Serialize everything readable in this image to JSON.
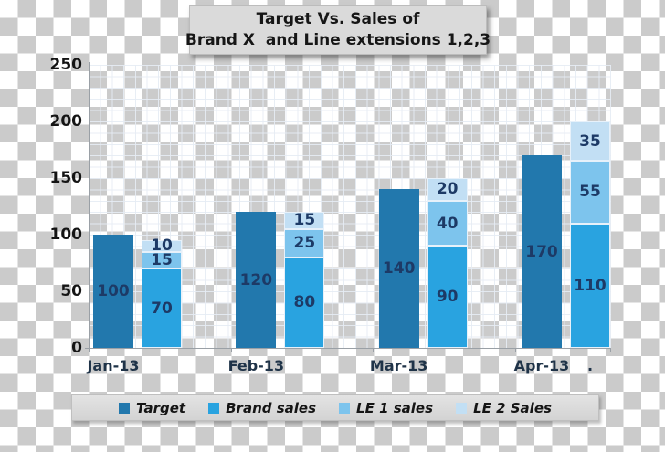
{
  "chart_data": {
    "type": "bar",
    "variant": "clustered target bar + stacked sales bar per category, on transparent checkerboard background",
    "title_lines": [
      "Target Vs. Sales of",
      "Brand X  and Line extensions 1,2,3"
    ],
    "categories": [
      "Jan-13",
      "Feb-13",
      "Mar-13",
      "Apr-13"
    ],
    "series": [
      {
        "name": "Target",
        "role": "target",
        "color": "#2278ad",
        "values": [
          100,
          120,
          140,
          170
        ]
      },
      {
        "name": "Brand sales",
        "role": "stack",
        "color": "#29a3e0",
        "values": [
          70,
          80,
          90,
          110
        ]
      },
      {
        "name": "LE 1 sales",
        "role": "stack",
        "color": "#7dc4ed",
        "values": [
          15,
          25,
          40,
          55
        ]
      },
      {
        "name": "LE 2 Sales",
        "role": "stack",
        "color": "#c2dff4",
        "values": [
          10,
          15,
          20,
          35
        ]
      }
    ],
    "y_ticks": [
      250,
      200,
      150,
      100,
      50,
      0
    ],
    "ylim": [
      0,
      250
    ],
    "x_extra_label": ".",
    "grid": "minor gridlines every 10 units, light gray, plot area only",
    "legend_position": "bottom bar",
    "data_labels": "shown inside every bar segment"
  },
  "colors": {
    "target_bar": "#2278ad",
    "brand_sales_bar": "#29a3e0",
    "le1_sales_bar": "#7dc4ed",
    "le2_sales_bar": "#c2dff4",
    "segment_border": "#e7f1fa",
    "title_box_bg": "#dadada",
    "legend_bg": "#d9d9d9",
    "axis_line": "#9aa0a6",
    "data_label_text": "#1d3a66",
    "axis_label_text": "#1f3348",
    "checker_gray": "#cbcbcb"
  }
}
